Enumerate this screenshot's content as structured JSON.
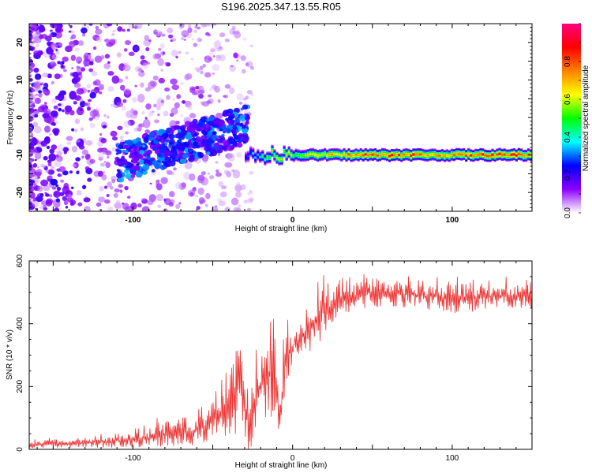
{
  "title": "S196.2025.347.13.55.R05",
  "chart_data": [
    {
      "type": "heatmap",
      "xlabel": "Height of straight line (km)",
      "ylabel": "Frequency (Hz)",
      "xlim": [
        -165,
        150
      ],
      "ylim": [
        -25,
        25
      ],
      "x_ticks": [
        -100,
        0,
        100
      ],
      "y_ticks": [
        -20,
        -10,
        0,
        10,
        20
      ],
      "colorbar": {
        "label": "Normalized spectral amplitude",
        "range": [
          0,
          1
        ],
        "ticks": [
          "0.0",
          "0.2",
          "0.4",
          "0.6",
          "0.8"
        ],
        "colors": [
          "#ffffff",
          "#8b00ff",
          "#0000ff",
          "#00ffff",
          "#00ff00",
          "#ffff00",
          "#ff8000",
          "#ff0000",
          "#ff0080"
        ]
      },
      "signal_band": {
        "frequency_hz": -10,
        "x_start": -30,
        "x_end": 150,
        "profile": [
          {
            "x": -30,
            "amp": 0.25
          },
          {
            "x": -20,
            "amp": 0.45
          },
          {
            "x": -10,
            "amp": 0.6
          },
          {
            "x": 0,
            "amp": 0.55
          },
          {
            "x": 10,
            "amp": 0.65
          },
          {
            "x": 20,
            "amp": 0.7
          },
          {
            "x": 40,
            "amp": 0.8
          },
          {
            "x": 60,
            "amp": 0.85
          },
          {
            "x": 80,
            "amp": 0.8
          },
          {
            "x": 100,
            "amp": 0.75
          },
          {
            "x": 120,
            "amp": 0.85
          },
          {
            "x": 150,
            "amp": 0.8
          }
        ]
      }
    },
    {
      "type": "line",
      "xlabel": "Height of straight line (km)",
      "ylabel": "SNR (10 * v/v)",
      "xlim": [
        -165,
        150
      ],
      "ylim": [
        0,
        600
      ],
      "x_ticks": [
        -100,
        0,
        100
      ],
      "y_ticks": [
        0,
        200,
        400,
        600
      ],
      "color": "#ee3333",
      "series": [
        {
          "name": "SNR",
          "envelope": [
            {
              "x": -165,
              "base": 15,
              "spike": 20
            },
            {
              "x": -130,
              "base": 20,
              "spike": 25
            },
            {
              "x": -100,
              "base": 30,
              "spike": 40
            },
            {
              "x": -80,
              "base": 45,
              "spike": 70
            },
            {
              "x": -60,
              "base": 60,
              "spike": 80
            },
            {
              "x": -50,
              "base": 90,
              "spike": 110
            },
            {
              "x": -40,
              "base": 150,
              "spike": 180
            },
            {
              "x": -33,
              "base": 200,
              "spike": 250
            },
            {
              "x": -27,
              "base": 80,
              "spike": 160
            },
            {
              "x": -20,
              "base": 200,
              "spike": 220
            },
            {
              "x": -12,
              "base": 250,
              "spike": 290
            },
            {
              "x": -8,
              "base": 120,
              "spike": 120
            },
            {
              "x": -4,
              "base": 300,
              "spike": 180
            },
            {
              "x": 0,
              "base": 330,
              "spike": 80
            },
            {
              "x": 10,
              "base": 380,
              "spike": 120
            },
            {
              "x": 20,
              "base": 440,
              "spike": 140
            },
            {
              "x": 30,
              "base": 480,
              "spike": 90
            },
            {
              "x": 50,
              "base": 500,
              "spike": 80
            },
            {
              "x": 80,
              "base": 490,
              "spike": 70
            },
            {
              "x": 100,
              "base": 480,
              "spike": 80
            },
            {
              "x": 130,
              "base": 490,
              "spike": 70
            },
            {
              "x": 150,
              "base": 490,
              "spike": 70
            }
          ]
        }
      ]
    }
  ]
}
